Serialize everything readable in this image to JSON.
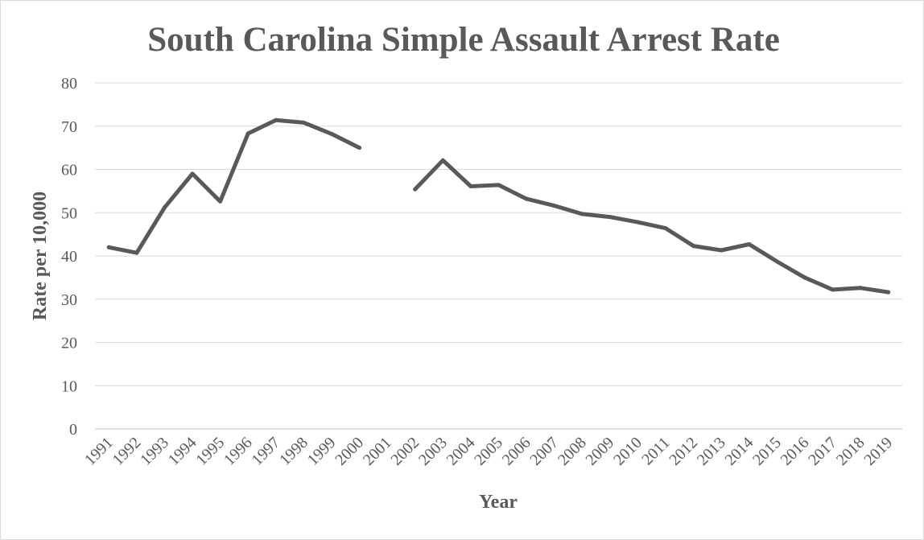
{
  "chart_data": {
    "type": "line",
    "title": "South Carolina Simple Assault Arrest Rate",
    "xlabel": "Year",
    "ylabel": "Rate per 10,000",
    "ylim": [
      0,
      80
    ],
    "yticks": [
      0,
      10,
      20,
      30,
      40,
      50,
      60,
      70,
      80
    ],
    "grid": true,
    "legend": "none",
    "categories": [
      "1991",
      "1992",
      "1993",
      "1994",
      "1995",
      "1996",
      "1997",
      "1998",
      "1999",
      "2000",
      "2001",
      "2002",
      "2003",
      "2004",
      "2005",
      "2006",
      "2007",
      "2008",
      "2009",
      "2010",
      "2011",
      "2012",
      "2013",
      "2014",
      "2015",
      "2016",
      "2017",
      "2018",
      "2019"
    ],
    "series": [
      {
        "color": "#595959",
        "values": [
          42.0,
          40.7,
          51.2,
          59.0,
          52.6,
          68.3,
          71.4,
          70.8,
          68.2,
          65.0,
          null,
          55.4,
          62.1,
          56.1,
          56.4,
          53.2,
          51.6,
          49.7,
          49.0,
          47.8,
          46.4,
          42.3,
          41.3,
          42.7,
          38.7,
          35.0,
          32.2,
          32.6,
          31.6
        ]
      }
    ]
  }
}
